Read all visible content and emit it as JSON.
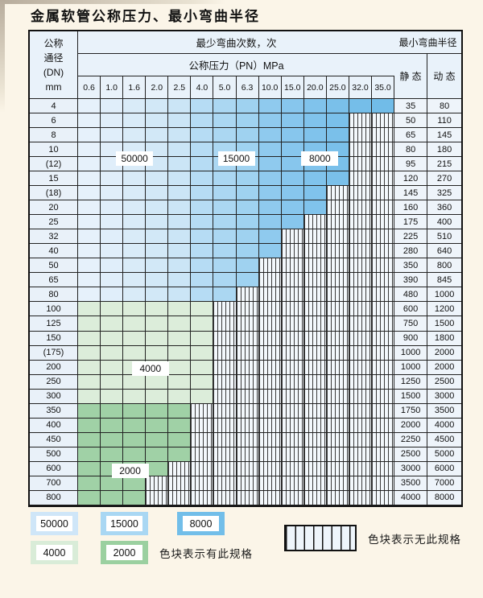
{
  "title": "金属软管公称压力、最小弯曲半径",
  "table": {
    "header": {
      "dn_label_lines": [
        "公称",
        "通径",
        "(DN)",
        "mm"
      ],
      "bend_cycles_label": "最少弯曲次数，次",
      "pressure_label": "公称压力（PN）MPa",
      "min_bend_radius_label": "最小弯曲半径",
      "static_label": "静 态",
      "dynamic_label": "动 态",
      "pressures": [
        "0.6",
        "1.0",
        "1.6",
        "2.0",
        "2.5",
        "4.0",
        "5.0",
        "6.3",
        "10.0",
        "15.0",
        "20.0",
        "25.0",
        "32.0",
        "35.0"
      ]
    },
    "rows": [
      {
        "dn": "4",
        "colored_columns": 14,
        "band": "blue",
        "static": "35",
        "dynamic": "80"
      },
      {
        "dn": "6",
        "colored_columns": 12,
        "band": "blue",
        "static": "50",
        "dynamic": "110"
      },
      {
        "dn": "8",
        "colored_columns": 12,
        "band": "blue",
        "static": "65",
        "dynamic": "145"
      },
      {
        "dn": "10",
        "colored_columns": 12,
        "band": "blue",
        "static": "80",
        "dynamic": "180"
      },
      {
        "dn": "(12)",
        "colored_columns": 12,
        "band": "blue",
        "static": "95",
        "dynamic": "215"
      },
      {
        "dn": "15",
        "colored_columns": 12,
        "band": "blue",
        "static": "120",
        "dynamic": "270"
      },
      {
        "dn": "(18)",
        "colored_columns": 11,
        "band": "blue",
        "static": "145",
        "dynamic": "325"
      },
      {
        "dn": "20",
        "colored_columns": 11,
        "band": "blue",
        "static": "160",
        "dynamic": "360"
      },
      {
        "dn": "25",
        "colored_columns": 10,
        "band": "blue",
        "static": "175",
        "dynamic": "400"
      },
      {
        "dn": "32",
        "colored_columns": 9,
        "band": "blue",
        "static": "225",
        "dynamic": "510"
      },
      {
        "dn": "40",
        "colored_columns": 9,
        "band": "blue",
        "static": "280",
        "dynamic": "640"
      },
      {
        "dn": "50",
        "colored_columns": 8,
        "band": "blue",
        "static": "350",
        "dynamic": "800"
      },
      {
        "dn": "65",
        "colored_columns": 8,
        "band": "blue",
        "static": "390",
        "dynamic": "845"
      },
      {
        "dn": "80",
        "colored_columns": 7,
        "band": "blue",
        "static": "480",
        "dynamic": "1000"
      },
      {
        "dn": "100",
        "colored_columns": 6,
        "band": "green-4000",
        "static": "600",
        "dynamic": "1200"
      },
      {
        "dn": "125",
        "colored_columns": 6,
        "band": "green-4000",
        "static": "750",
        "dynamic": "1500"
      },
      {
        "dn": "150",
        "colored_columns": 6,
        "band": "green-4000",
        "static": "900",
        "dynamic": "1800"
      },
      {
        "dn": "(175)",
        "colored_columns": 6,
        "band": "green-4000",
        "static": "1000",
        "dynamic": "2000"
      },
      {
        "dn": "200",
        "colored_columns": 6,
        "band": "green-4000",
        "static": "1000",
        "dynamic": "2000"
      },
      {
        "dn": "250",
        "colored_columns": 6,
        "band": "green-4000",
        "static": "1250",
        "dynamic": "2500"
      },
      {
        "dn": "300",
        "colored_columns": 6,
        "band": "green-4000",
        "static": "1500",
        "dynamic": "3000"
      },
      {
        "dn": "350",
        "colored_columns": 5,
        "band": "green-2000",
        "static": "1750",
        "dynamic": "3500"
      },
      {
        "dn": "400",
        "colored_columns": 5,
        "band": "green-2000",
        "static": "2000",
        "dynamic": "4000"
      },
      {
        "dn": "450",
        "colored_columns": 5,
        "band": "green-2000",
        "static": "2250",
        "dynamic": "4500"
      },
      {
        "dn": "500",
        "colored_columns": 5,
        "band": "green-2000",
        "static": "2500",
        "dynamic": "5000"
      },
      {
        "dn": "600",
        "colored_columns": 4,
        "band": "green-2000",
        "static": "3000",
        "dynamic": "6000"
      },
      {
        "dn": "700",
        "colored_columns": 3,
        "band": "green-2000",
        "static": "3500",
        "dynamic": "7000"
      },
      {
        "dn": "800",
        "colored_columns": 3,
        "band": "green-2000",
        "static": "4000",
        "dynamic": "8000"
      }
    ],
    "overlay_labels": [
      {
        "text": "50000",
        "col": 2.5,
        "row": 4.1
      },
      {
        "text": "15000",
        "col": 7.0,
        "row": 4.1
      },
      {
        "text": "8000",
        "col": 10.7,
        "row": 4.1
      },
      {
        "text": "4000",
        "col": 3.2,
        "row": 18.6
      },
      {
        "text": "2000",
        "col": 2.3,
        "row": 25.6
      }
    ]
  },
  "legend": {
    "items": [
      {
        "value": "50000",
        "color": "#cfe6f8"
      },
      {
        "value": "15000",
        "color": "#a9d7f3"
      },
      {
        "value": "8000",
        "color": "#72bee9"
      },
      {
        "value": "4000",
        "color": "#d9ecd8"
      },
      {
        "value": "2000",
        "color": "#9bd0a0"
      }
    ],
    "present_label": "色块表示有此规格",
    "absent_label": "色块表示无此规格"
  },
  "colors": {
    "page_bg": "#fbf5e8",
    "header_bg": "#e9f2fa",
    "hatch_bg": "#f3f8fc",
    "grid": "#222222",
    "green_4000": "#dcedda",
    "green_2000": "#a0d1a6",
    "blue_by_col": [
      "#e6f1fb",
      "#e0eefa",
      "#d9ebf8",
      "#d2e8f7",
      "#cbe5f6",
      "#b6dcf4",
      "#abd7f2",
      "#9fd2f0",
      "#8fcaee",
      "#87c6ed",
      "#80c3ec",
      "#7ac0ea",
      "#75bee9",
      "#71bce8"
    ]
  }
}
